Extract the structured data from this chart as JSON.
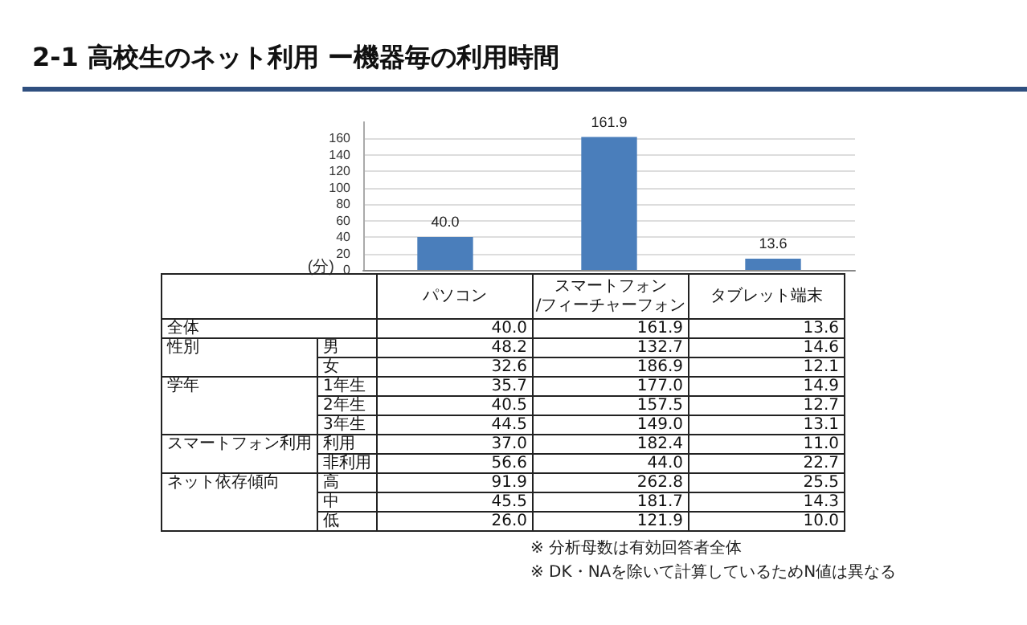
{
  "chart_data": [
    {
      "type": "bar",
      "title": "2-1 高校生のネット利用 ー機器毎の利用時間",
      "ylabel": "(分)",
      "categories": [
        null,
        null,
        null
      ],
      "values": [
        40.0,
        161.9,
        13.6
      ],
      "color": "#4a7ebb",
      "ylim": [
        0,
        180
      ],
      "yticks": [
        0,
        20,
        40,
        60,
        80,
        100,
        120,
        140,
        160
      ],
      "grid": "y",
      "value_labels": [
        "40.0",
        "161.9",
        "13.6"
      ],
      "tick_labels": "y"
    },
    {
      "type": "heatmap",
      "data_labels": true,
      "categories": [
        "パソコン",
        "スマートフォン\n/フィーチャーフォン",
        "タブレット端末"
      ],
      "y_categories": [
        "全体",
        "性別",
        null,
        "学年",
        null,
        null,
        "スマートフォン利用",
        null,
        "ネット依存傾向",
        null,
        null
      ],
      "y2_categories": [
        null,
        "男",
        "女",
        "1年生",
        "2年生",
        "3年生",
        "利用",
        "非利用",
        "高",
        "中",
        "低"
      ],
      "cells": [
        [
          40.0,
          161.9,
          13.6
        ],
        [
          48.2,
          132.7,
          14.6
        ],
        [
          32.6,
          186.9,
          12.1
        ],
        [
          35.7,
          177.0,
          14.9
        ],
        [
          40.5,
          157.5,
          12.7
        ],
        [
          44.5,
          149.0,
          13.1
        ],
        [
          37.0,
          182.4,
          11.0
        ],
        [
          56.6,
          44.0,
          22.7
        ],
        [
          91.9,
          262.8,
          25.5
        ],
        [
          45.5,
          181.7,
          14.3
        ],
        [
          26.0,
          121.9,
          10.0
        ]
      ],
      "cell_labels": [
        [
          "40.0",
          "161.9",
          "13.6"
        ],
        [
          "48.2",
          "132.7",
          "14.6"
        ],
        [
          "32.6",
          "186.9",
          "12.1"
        ],
        [
          "35.7",
          "177.0",
          "14.9"
        ],
        [
          "40.5",
          "157.5",
          "12.7"
        ],
        [
          "44.5",
          "149.0",
          "13.1"
        ],
        [
          "37.0",
          "182.4",
          "11.0"
        ],
        [
          "56.6",
          "44.0",
          "22.7"
        ],
        [
          "91.9",
          "262.8",
          "25.5"
        ],
        [
          "45.5",
          "181.7",
          "14.3"
        ],
        [
          "26.0",
          "121.9",
          "10.0"
        ]
      ],
      "annotations": [
        "※ 分析母数は有効回答者全体",
        "※ DK・NAを除いて計算しているためN値は異なる"
      ]
    }
  ]
}
